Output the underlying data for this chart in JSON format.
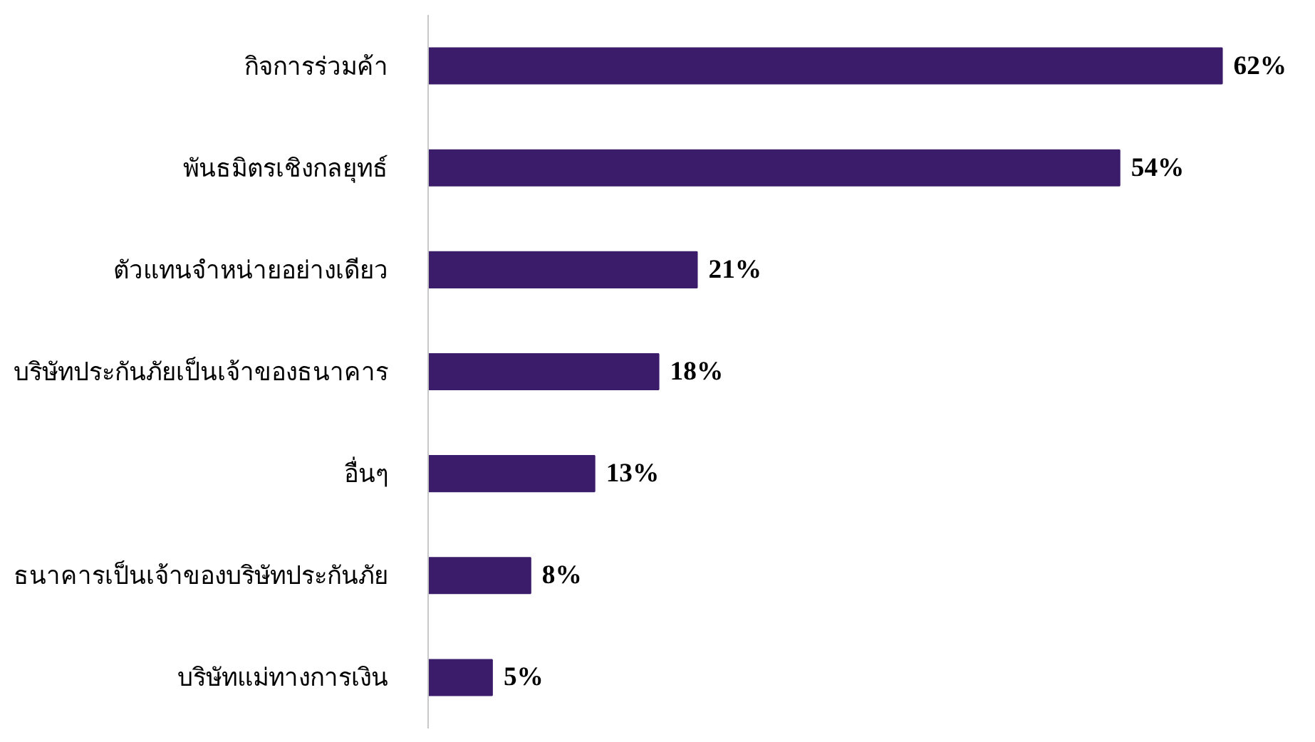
{
  "chart_data": {
    "type": "bar",
    "orientation": "horizontal",
    "categories": [
      "กิจการร่วมค้า",
      "พันธมิตรเชิงกลยุทธ์",
      "ตัวแทนจำหน่ายอย่างเดียว",
      "บริษัทประกันภัยเป็นเจ้าของธนาคาร",
      "อื่นๆ",
      "ธนาคารเป็นเจ้าของบริษัทประกันภัย",
      "บริษัทแม่ทางการเงิน"
    ],
    "values": [
      62,
      54,
      21,
      18,
      13,
      8,
      5
    ],
    "value_labels": [
      "62%",
      "54%",
      "21%",
      "18%",
      "13%",
      "8%",
      "5%"
    ],
    "color": "#3b1c6a",
    "tick_labels": "y",
    "grid": false
  }
}
